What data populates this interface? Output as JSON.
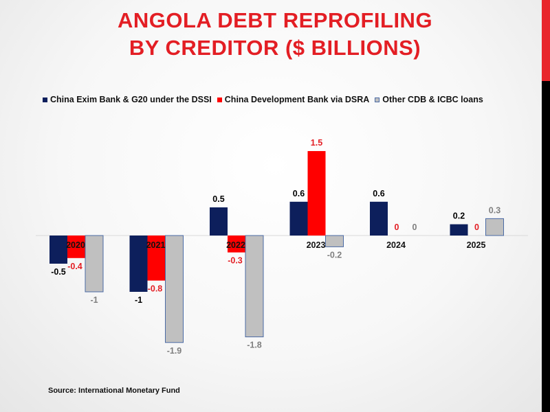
{
  "slide": {
    "title_line1": "ANGOLA DEBT REPROFILING",
    "title_line2": "BY CREDITOR ($ BILLIONS)",
    "source": "Source: International Monetary Fund",
    "colors": {
      "title": "#e31e24",
      "accent_red": "#e8262c",
      "accent_black": "#000000"
    }
  },
  "chart_data": {
    "type": "bar",
    "title": "ANGOLA DEBT REPROFILING BY CREDITOR ($ BILLIONS)",
    "categories": [
      "2020",
      "2021",
      "2022",
      "2023",
      "2024",
      "2025"
    ],
    "series": [
      {
        "name": "China Exim Bank & G20 under the DSSI",
        "values": [
          -0.5,
          -1,
          0.5,
          0.6,
          0.6,
          0.2
        ],
        "labels": [
          "-0.5",
          "-1",
          "0.5",
          "0.6",
          "0.6",
          "0.2"
        ],
        "color": "#0d1f5c",
        "label_color": "#000000"
      },
      {
        "name": "China Development Bank via DSRA",
        "values": [
          -0.4,
          -0.8,
          -0.3,
          1.5,
          0,
          0
        ],
        "labels": [
          "-0.4",
          "-0.8",
          "-0.3",
          "1.5",
          "0",
          "0"
        ],
        "color": "#ff0000",
        "label_color": "#e31e24"
      },
      {
        "name": "Other CDB & ICBC loans",
        "values": [
          -1,
          -1.9,
          -1.8,
          -0.2,
          0,
          0.3
        ],
        "labels": [
          "-1",
          "-1.9",
          "-1.8",
          "-0.2",
          "0",
          "0.3"
        ],
        "color": "#c0c0c0",
        "border_color": "#4a6aa5",
        "label_color": "#7f7f7f"
      }
    ],
    "ylim": [
      -2.2,
      2.0
    ],
    "grid": false,
    "legend_position": "top",
    "xlabel": "",
    "ylabel": ""
  }
}
